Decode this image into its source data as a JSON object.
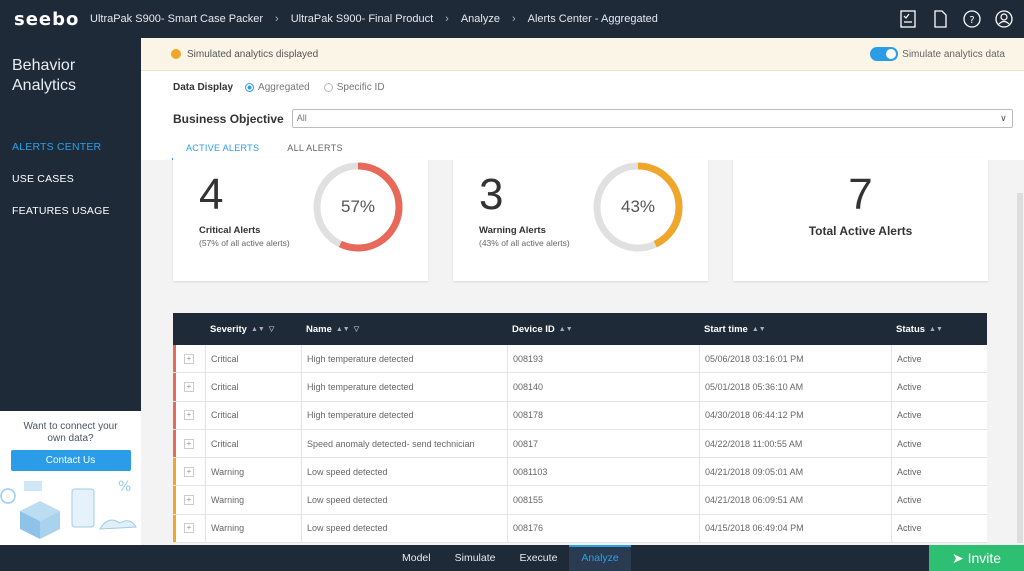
{
  "brand": "seebo",
  "breadcrumbs": [
    "UltraPak S900- Smart Case Packer",
    "UltraPak S900- Final Product",
    "Analyze",
    "Alerts Center - Aggregated"
  ],
  "top_icons": [
    "report-icon",
    "document-icon",
    "help-icon",
    "user-icon"
  ],
  "sidebar": {
    "title_line1": "Behavior",
    "title_line2": "Analytics",
    "items": [
      {
        "label": "ALERTS CENTER",
        "active": true
      },
      {
        "label": "USE CASES",
        "active": false
      },
      {
        "label": "FEATURES USAGE",
        "active": false
      }
    ],
    "promo_text1": "Want to connect your",
    "promo_text2": "own data?",
    "promo_button": "Contact Us"
  },
  "banner": {
    "message": "Simulated analytics displayed",
    "toggle_label": "Simulate analytics data",
    "toggle_on": true
  },
  "filters": {
    "data_display_label": "Data Display",
    "option_aggregated": "Aggregated",
    "option_specific": "Specific ID",
    "business_objective_label": "Business Objective",
    "business_objective_value": "All"
  },
  "tabs": [
    "ACTIVE ALERTS",
    "ALL ALERTS"
  ],
  "cards": {
    "critical": {
      "count": "4",
      "label": "Critical Alerts",
      "sub": "(57% of all active alerts)",
      "percent_text": "57%",
      "percent": 0.57,
      "color": "#e8695a"
    },
    "warning": {
      "count": "3",
      "label": "Warning Alerts",
      "sub": "(43% of all active alerts)",
      "percent_text": "43%",
      "percent": 0.43,
      "color": "#f0a62a"
    },
    "total": {
      "count": "7",
      "label": "Total Active Alerts"
    }
  },
  "table": {
    "headers": {
      "severity": "Severity",
      "name": "Name",
      "device": "Device ID",
      "start": "Start time",
      "status": "Status"
    },
    "rows": [
      {
        "severity": "Critical",
        "name": "High temperature detected",
        "device": "008193",
        "start": "05/06/2018 03:16:01 PM",
        "status": "Active"
      },
      {
        "severity": "Critical",
        "name": "High temperature detected",
        "device": "008140",
        "start": "05/01/2018 05:36:10 AM",
        "status": "Active"
      },
      {
        "severity": "Critical",
        "name": "High temperature detected",
        "device": "008178",
        "start": "04/30/2018 06:44:12 PM",
        "status": "Active"
      },
      {
        "severity": "Critical",
        "name": "Speed anomaly detected- send technician",
        "device": "00817",
        "start": "04/22/2018 11:00:55 AM",
        "status": "Active"
      },
      {
        "severity": "Warning",
        "name": "Low speed detected",
        "device": "0081103",
        "start": "04/21/2018 09:05:01 AM",
        "status": "Active"
      },
      {
        "severity": "Warning",
        "name": "Low speed detected",
        "device": "008155",
        "start": "04/21/2018 06:09:51 AM",
        "status": "Active"
      },
      {
        "severity": "Warning",
        "name": "Low speed detected",
        "device": "008176",
        "start": "04/15/2018 06:49:04 PM",
        "status": "Active"
      }
    ]
  },
  "colors": {
    "critical": "#e8695a",
    "warning": "#f0a62a",
    "accent": "#2a9ce8",
    "invite": "#2fbf73"
  },
  "bottom_tabs": [
    "Model",
    "Simulate",
    "Execute",
    "Analyze"
  ],
  "invite_label": "Invite"
}
